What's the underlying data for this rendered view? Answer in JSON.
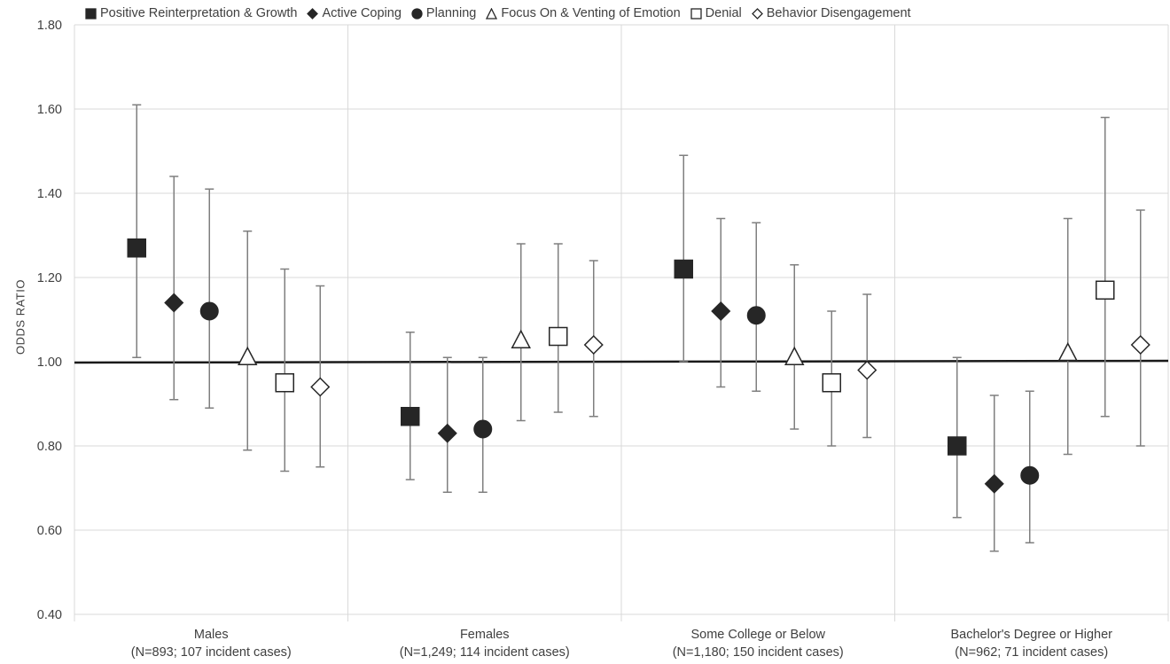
{
  "chart_data": {
    "type": "scatter",
    "ylabel": "ODDS RATIO",
    "ylim": [
      0.4,
      1.8
    ],
    "yticks": [
      "0.40",
      "0.60",
      "0.80",
      "1.00",
      "1.20",
      "1.40",
      "1.60",
      "1.80"
    ],
    "reference_line": 1.0,
    "grid": "horizontal and category dividers",
    "legend_position": "top",
    "categories": [
      {
        "name": "Males",
        "sub": "(N=893; 107 incident cases)"
      },
      {
        "name": "Females",
        "sub": "(N=1,249; 114 incident cases)"
      },
      {
        "name": "Some College or Below",
        "sub": "(N=1,180; 150 incident cases)"
      },
      {
        "name": "Bachelor's Degree or Higher",
        "sub": "(N=962; 71 incident cases)"
      }
    ],
    "series": [
      {
        "name": "Positive Reinterpretation & Growth",
        "marker": "square-filled",
        "values": [
          1.27,
          0.87,
          1.22,
          0.8
        ],
        "lower": [
          1.01,
          0.72,
          1.0,
          0.63
        ],
        "upper": [
          1.61,
          1.07,
          1.49,
          1.01
        ]
      },
      {
        "name": "Active Coping",
        "marker": "diamond-filled",
        "values": [
          1.14,
          0.83,
          1.12,
          0.71
        ],
        "lower": [
          0.91,
          0.69,
          0.94,
          0.55
        ],
        "upper": [
          1.44,
          1.01,
          1.34,
          0.92
        ]
      },
      {
        "name": "Planning",
        "marker": "circle-filled",
        "values": [
          1.12,
          0.84,
          1.11,
          0.73
        ],
        "lower": [
          0.89,
          0.69,
          0.93,
          0.57
        ],
        "upper": [
          1.41,
          1.01,
          1.33,
          0.93
        ]
      },
      {
        "name": "Focus On & Venting of Emotion",
        "marker": "triangle-open",
        "values": [
          1.01,
          1.05,
          1.01,
          1.02
        ],
        "lower": [
          0.79,
          0.86,
          0.84,
          0.78
        ],
        "upper": [
          1.31,
          1.28,
          1.23,
          1.34
        ]
      },
      {
        "name": "Denial",
        "marker": "square-open",
        "values": [
          0.95,
          1.06,
          0.95,
          1.17
        ],
        "lower": [
          0.74,
          0.88,
          0.8,
          0.87
        ],
        "upper": [
          1.22,
          1.28,
          1.12,
          1.58
        ]
      },
      {
        "name": "Behavior Disengagement",
        "marker": "diamond-open",
        "values": [
          0.94,
          1.04,
          0.98,
          1.04
        ],
        "lower": [
          0.75,
          0.87,
          0.82,
          0.8
        ],
        "upper": [
          1.18,
          1.24,
          1.16,
          1.36
        ]
      }
    ]
  },
  "colors": {
    "marker": "#262626",
    "error_bar": "#7f7f7f",
    "grid": "#d9d9d9",
    "reference_line": "#1a1a1a",
    "text": "#404040"
  }
}
